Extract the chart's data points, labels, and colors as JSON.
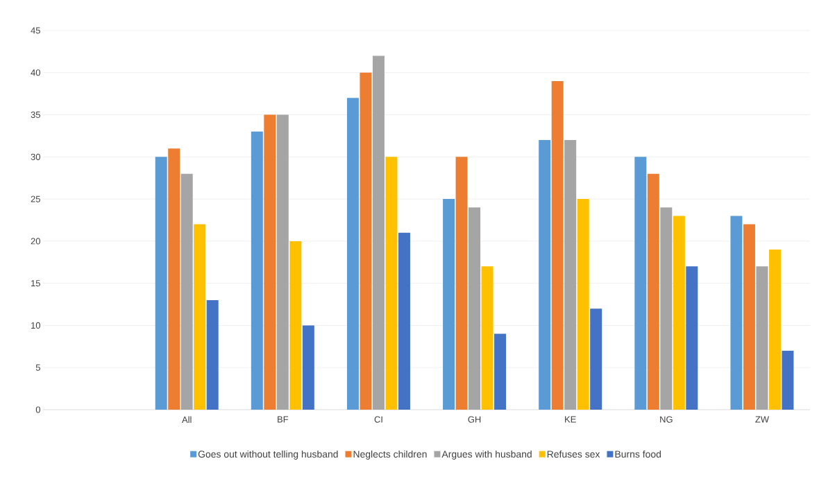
{
  "chart_data": {
    "type": "bar",
    "categories": [
      null,
      "All",
      "BF",
      "CI",
      "GH",
      "KE",
      "NG",
      "ZW"
    ],
    "series": [
      {
        "name": "Goes out without telling husband",
        "color": "#5b9bd5",
        "values": [
          null,
          30,
          33,
          37,
          25,
          32,
          30,
          23
        ]
      },
      {
        "name": "Neglects children",
        "color": "#ed7d31",
        "values": [
          null,
          31,
          35,
          40,
          30,
          39,
          28,
          22
        ]
      },
      {
        "name": "Argues with husband",
        "color": "#a5a5a5",
        "values": [
          null,
          28,
          35,
          42,
          24,
          32,
          24,
          17
        ]
      },
      {
        "name": "Refuses sex",
        "color": "#ffc000",
        "values": [
          null,
          22,
          20,
          30,
          17,
          25,
          23,
          19
        ]
      },
      {
        "name": "Burns food",
        "color": "#4472c4",
        "values": [
          null,
          13,
          10,
          21,
          9,
          12,
          17,
          7
        ]
      }
    ],
    "ylim": [
      0,
      45
    ],
    "yticks": [
      0,
      5,
      10,
      15,
      20,
      25,
      30,
      35,
      40,
      45
    ],
    "grid": "y",
    "legend": "bottom"
  }
}
